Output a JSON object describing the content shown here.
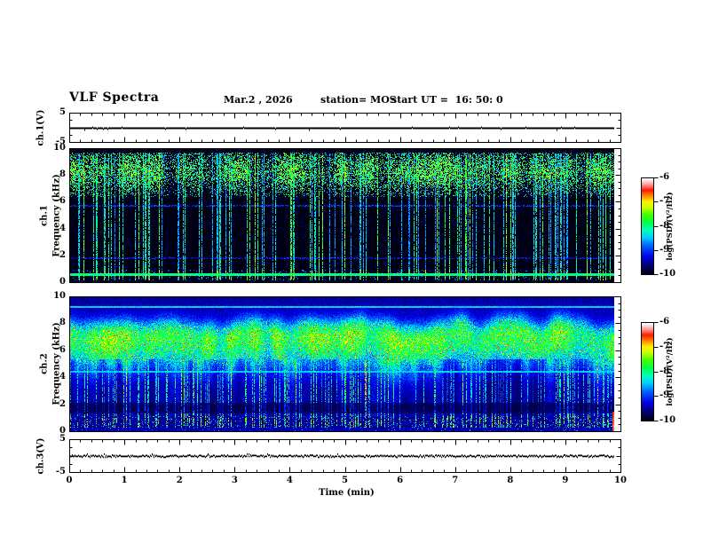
{
  "header": {
    "title": "VLF Spectra",
    "date": "Mar.2 , 2026",
    "station": "station= MOS",
    "start_ut": "start UT =  16: 50: 0"
  },
  "x_axis": {
    "label": "Time (min)",
    "range_min": [
      0,
      10
    ],
    "tick_labels": [
      "0",
      "1",
      "2",
      "3",
      "4",
      "5",
      "6",
      "7",
      "8",
      "9",
      "10"
    ],
    "minor_divisions_per_major": 5
  },
  "panels": {
    "ch1_voltage": {
      "ylabel": "ch.1(V)",
      "yrange_V": [
        -5,
        5
      ],
      "ytick_labels": [
        "5",
        "-5"
      ],
      "signal": "flat trace near 0 V ending near 9.9 min"
    },
    "ch1_spectrogram": {
      "ylabel_outer": "ch.1",
      "ylabel_inner": "Frequency (kHz)",
      "yrange_kHz": [
        0,
        10
      ],
      "ytick_labels": [
        "10",
        "8",
        "6",
        "4",
        "2",
        "0"
      ]
    },
    "ch2_spectrogram": {
      "ylabel_outer": "ch.2",
      "ylabel_inner": "Frequency (kHz)",
      "yrange_kHz": [
        0,
        10
      ],
      "ytick_labels": [
        "10",
        "8",
        "6",
        "4",
        "2",
        "0"
      ]
    },
    "ch3_voltage": {
      "ylabel": "ch.3(V)",
      "yrange_V": [
        -5,
        5
      ],
      "ytick_labels": [
        "5",
        "-5"
      ],
      "signal": "flat noisy trace near 0 V"
    }
  },
  "colorbars": [
    {
      "label": "log(PSD)(V²/Hz)",
      "tick_labels": [
        "-6",
        "-7",
        "-8",
        "-9",
        "-10"
      ],
      "range_log": [
        -10,
        -6
      ]
    },
    {
      "label": "log(PSD)(V²/Hz)",
      "tick_labels": [
        "-6",
        "-7",
        "-8",
        "-9",
        "-10"
      ],
      "range_log": [
        -10,
        -6
      ]
    }
  ],
  "chart_data": {
    "type": "heatmap",
    "title": "VLF Spectra",
    "date": "Mar.2 , 2026",
    "station": "MOS",
    "start_ut": "16:50:0",
    "xlabel": "Time (min)",
    "x_range_min": [
      0,
      10
    ],
    "data_end_min": 9.88,
    "psd_range_log_v2_per_hz": [
      -10,
      -6
    ],
    "seed": 20260302,
    "colormap_stops": [
      [
        0.0,
        "#000014"
      ],
      [
        0.08,
        "#00006e"
      ],
      [
        0.18,
        "#0000e6"
      ],
      [
        0.3,
        "#0066ff"
      ],
      [
        0.38,
        "#00ccff"
      ],
      [
        0.46,
        "#00ffbb"
      ],
      [
        0.54,
        "#00ff44"
      ],
      [
        0.62,
        "#44ff00"
      ],
      [
        0.7,
        "#ccff00"
      ],
      [
        0.76,
        "#ffee00"
      ],
      [
        0.82,
        "#ff8800"
      ],
      [
        0.88,
        "#ff1a00"
      ],
      [
        0.94,
        "#ff9c9c"
      ],
      [
        1.0,
        "#ffffff"
      ]
    ],
    "panels": [
      {
        "name": "ch.1 voltage",
        "kind": "line",
        "yrange_V": [
          -5,
          5
        ],
        "trace": "constant ~0 V with rare 1-px glitches"
      },
      {
        "name": "ch.1 spectrogram",
        "kind": "spectrogram",
        "freq_range_kHz": [
          0,
          10
        ],
        "background_level_log": -10,
        "features": {
          "impulsive_vertical_streaks": {
            "column_probability": 0.22,
            "freq_span_kHz": [
              0.25,
              9.7
            ],
            "level_log": [
              -9.2,
              -8.0
            ]
          },
          "upper_activity_band_kHz": [
            6.4,
            9.75
          ],
          "upper_band_peak_kHz": 8.35,
          "upper_band_level_log": [
            -9.0,
            -7.6
          ],
          "hot_spot_level_log": -6.8,
          "faint_horizontal_lines_kHz": [
            5.75,
            1.85
          ],
          "narrowband_green_line_kHz": 0.58,
          "narrowband_level_log": -8.1,
          "bottom_speckle_band_kHz": [
            0.18,
            0.95
          ]
        }
      },
      {
        "name": "ch.2 spectrogram",
        "kind": "spectrogram",
        "freq_range_kHz": [
          0,
          10
        ],
        "background_level_log": -9.6,
        "features": {
          "continuous_emission_band_kHz": [
            5.5,
            9.2
          ],
          "band_center_kHz": 7.1,
          "band_level_log": [
            -8.0,
            -7.0
          ],
          "hot_core_level_log": -6.6,
          "horizontal_lines_kHz": [
            9.3,
            4.45
          ],
          "lower_region_kHz": [
            1.2,
            5.4
          ],
          "lower_region_level_log": [
            -9.6,
            -8.6
          ],
          "dark_band_kHz": [
            1.35,
            2.15
          ],
          "bottom_speckle_band_kHz": [
            0.3,
            1.15
          ],
          "right_edge_red_sliver_kHz": [
            0,
            1.5
          ]
        }
      },
      {
        "name": "ch.3 voltage",
        "kind": "line",
        "yrange_V": [
          -5,
          5
        ],
        "trace": "constant ~0 V, noisier than ch.1"
      }
    ]
  }
}
